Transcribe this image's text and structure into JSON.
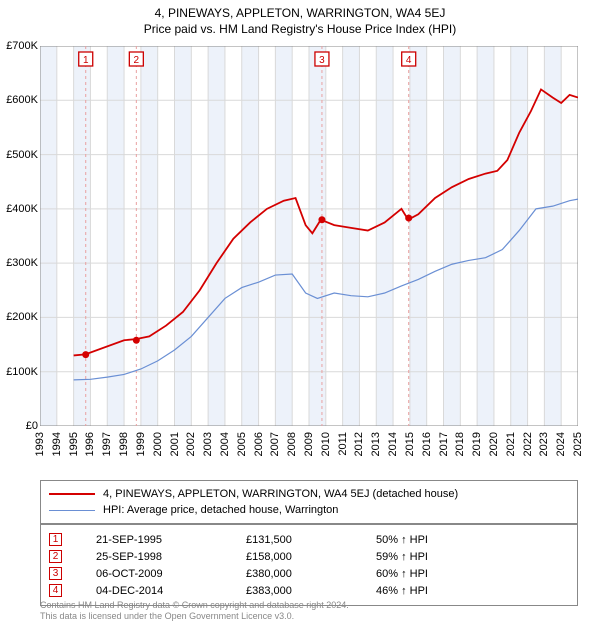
{
  "title": "4, PINEWAYS, APPLETON, WARRINGTON, WA4 5EJ",
  "subtitle": "Price paid vs. HM Land Registry's House Price Index (HPI)",
  "chart": {
    "type": "line",
    "x_min_year": 1993,
    "x_max_year": 2025,
    "y_min": 0,
    "y_max": 700000,
    "y_tick_step": 100000,
    "y_tick_labels": [
      "£0",
      "£100K",
      "£200K",
      "£300K",
      "£400K",
      "£500K",
      "£600K",
      "£700K"
    ],
    "x_ticks": [
      1993,
      1994,
      1995,
      1996,
      1997,
      1998,
      1999,
      2000,
      2001,
      2002,
      2003,
      2004,
      2005,
      2006,
      2007,
      2008,
      2009,
      2010,
      2011,
      2012,
      2013,
      2014,
      2015,
      2016,
      2017,
      2018,
      2019,
      2020,
      2021,
      2022,
      2023,
      2024,
      2025
    ],
    "background_color": "#ffffff",
    "grid_color": "#d9d9d9",
    "band_color": "#edf2fa",
    "band_years": [
      [
        1993,
        1994
      ],
      [
        1995,
        1996
      ],
      [
        1997,
        1998
      ],
      [
        1999,
        2000
      ],
      [
        2001,
        2002
      ],
      [
        2003,
        2004
      ],
      [
        2005,
        2006
      ],
      [
        2007,
        2008
      ],
      [
        2009,
        2010
      ],
      [
        2011,
        2012
      ],
      [
        2013,
        2014
      ],
      [
        2015,
        2016
      ],
      [
        2017,
        2018
      ],
      [
        2019,
        2020
      ],
      [
        2021,
        2022
      ],
      [
        2023,
        2024
      ]
    ],
    "series": [
      {
        "name": "price_paid",
        "color": "#d40000",
        "width": 1.8,
        "points": [
          [
            1995.0,
            130000
          ],
          [
            1995.7,
            132000
          ],
          [
            1998.0,
            158000
          ],
          [
            1998.7,
            160000
          ],
          [
            1999.5,
            165000
          ],
          [
            2000.5,
            185000
          ],
          [
            2001.5,
            210000
          ],
          [
            2002.5,
            250000
          ],
          [
            2003.5,
            300000
          ],
          [
            2004.5,
            345000
          ],
          [
            2005.5,
            375000
          ],
          [
            2006.5,
            400000
          ],
          [
            2007.5,
            415000
          ],
          [
            2008.2,
            420000
          ],
          [
            2008.8,
            370000
          ],
          [
            2009.2,
            355000
          ],
          [
            2009.7,
            380000
          ],
          [
            2010.5,
            370000
          ],
          [
            2011.5,
            365000
          ],
          [
            2012.5,
            360000
          ],
          [
            2013.5,
            375000
          ],
          [
            2014.5,
            400000
          ],
          [
            2014.9,
            380000
          ],
          [
            2015.5,
            390000
          ],
          [
            2016.5,
            420000
          ],
          [
            2017.5,
            440000
          ],
          [
            2018.5,
            455000
          ],
          [
            2019.5,
            465000
          ],
          [
            2020.2,
            470000
          ],
          [
            2020.8,
            490000
          ],
          [
            2021.5,
            540000
          ],
          [
            2022.2,
            580000
          ],
          [
            2022.8,
            620000
          ],
          [
            2023.5,
            605000
          ],
          [
            2024.0,
            595000
          ],
          [
            2024.5,
            610000
          ],
          [
            2025.0,
            605000
          ]
        ]
      },
      {
        "name": "hpi",
        "color": "#6a8fd4",
        "width": 1.2,
        "points": [
          [
            1995.0,
            85000
          ],
          [
            1996.0,
            86000
          ],
          [
            1997.0,
            90000
          ],
          [
            1998.0,
            95000
          ],
          [
            1999.0,
            105000
          ],
          [
            2000.0,
            120000
          ],
          [
            2001.0,
            140000
          ],
          [
            2002.0,
            165000
          ],
          [
            2003.0,
            200000
          ],
          [
            2004.0,
            235000
          ],
          [
            2005.0,
            255000
          ],
          [
            2006.0,
            265000
          ],
          [
            2007.0,
            278000
          ],
          [
            2008.0,
            280000
          ],
          [
            2008.8,
            245000
          ],
          [
            2009.5,
            235000
          ],
          [
            2010.5,
            245000
          ],
          [
            2011.5,
            240000
          ],
          [
            2012.5,
            238000
          ],
          [
            2013.5,
            245000
          ],
          [
            2014.5,
            258000
          ],
          [
            2015.5,
            270000
          ],
          [
            2016.5,
            285000
          ],
          [
            2017.5,
            298000
          ],
          [
            2018.5,
            305000
          ],
          [
            2019.5,
            310000
          ],
          [
            2020.5,
            325000
          ],
          [
            2021.5,
            360000
          ],
          [
            2022.5,
            400000
          ],
          [
            2023.5,
            405000
          ],
          [
            2024.5,
            415000
          ],
          [
            2025.0,
            418000
          ]
        ]
      }
    ],
    "sale_markers": [
      {
        "n": "1",
        "year": 1995.72,
        "price": 131500
      },
      {
        "n": "2",
        "year": 1998.73,
        "price": 158000
      },
      {
        "n": "3",
        "year": 2009.77,
        "price": 380000
      },
      {
        "n": "4",
        "year": 2014.93,
        "price": 383000
      }
    ],
    "marker_line_color": "#e9a0a0",
    "marker_dot_color": "#d40000",
    "marker_box_border": "#cc0000",
    "marker_box_text": "#cc0000"
  },
  "legend": {
    "items": [
      {
        "color": "#d40000",
        "width": 2,
        "label": "4, PINEWAYS, APPLETON, WARRINGTON, WA4 5EJ (detached house)"
      },
      {
        "color": "#6a8fd4",
        "width": 1,
        "label": "HPI: Average price, detached house, Warrington"
      }
    ]
  },
  "table": {
    "rows": [
      {
        "n": "1",
        "date": "21-SEP-1995",
        "price": "£131,500",
        "pct": "50% ↑ HPI"
      },
      {
        "n": "2",
        "date": "25-SEP-1998",
        "price": "£158,000",
        "pct": "59% ↑ HPI"
      },
      {
        "n": "3",
        "date": "06-OCT-2009",
        "price": "£380,000",
        "pct": "60% ↑ HPI"
      },
      {
        "n": "4",
        "date": "04-DEC-2014",
        "price": "£383,000",
        "pct": "46% ↑ HPI"
      }
    ]
  },
  "footer_line1": "Contains HM Land Registry data © Crown copyright and database right 2024.",
  "footer_line2": "This data is licensed under the Open Government Licence v3.0."
}
